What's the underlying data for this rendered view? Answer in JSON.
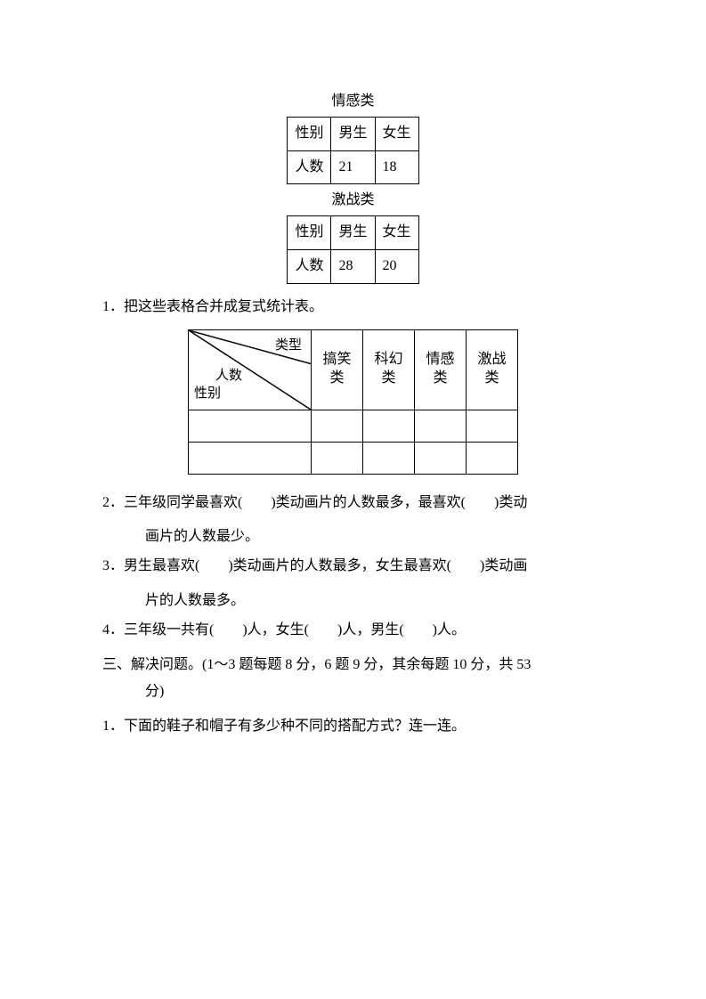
{
  "table_emotion": {
    "title": "情感类",
    "row1_label": "性别",
    "row1_col1": "男生",
    "row1_col2": "女生",
    "row2_label": "人数",
    "row2_col1": "21",
    "row2_col2": "18"
  },
  "table_battle": {
    "title": "激战类",
    "row1_label": "性别",
    "row1_col1": "男生",
    "row1_col2": "女生",
    "row2_label": "人数",
    "row2_col1": "28",
    "row2_col2": "20"
  },
  "q1": {
    "text": "1．把这些表格合并成复式统计表。",
    "diag_top": "类型",
    "diag_mid": "人数",
    "diag_bottom": "性别",
    "col1": "搞笑类",
    "col2": "科幻类",
    "col3": "情感类",
    "col4": "激战类"
  },
  "q2": {
    "line1": "2．三年级同学最喜欢(　　)类动画片的人数最多，最喜欢(　　)类动",
    "line2": "画片的人数最少。"
  },
  "q3": {
    "line1": "3．男生最喜欢(　　)类动画片的人数最多，女生最喜欢(　　)类动画",
    "line2": "片的人数最多。"
  },
  "q4": {
    "text": "4．三年级一共有(　　)人，女生(　　)人，男生(　　)人。"
  },
  "section3": {
    "line1": "三、解决问题。(1～3 题每题 8 分，6 题 9 分，其余每题 10 分，共 53",
    "line2": "分)"
  },
  "s3q1": {
    "text": "1．下面的鞋子和帽子有多少种不同的搭配方式？连一连。"
  }
}
